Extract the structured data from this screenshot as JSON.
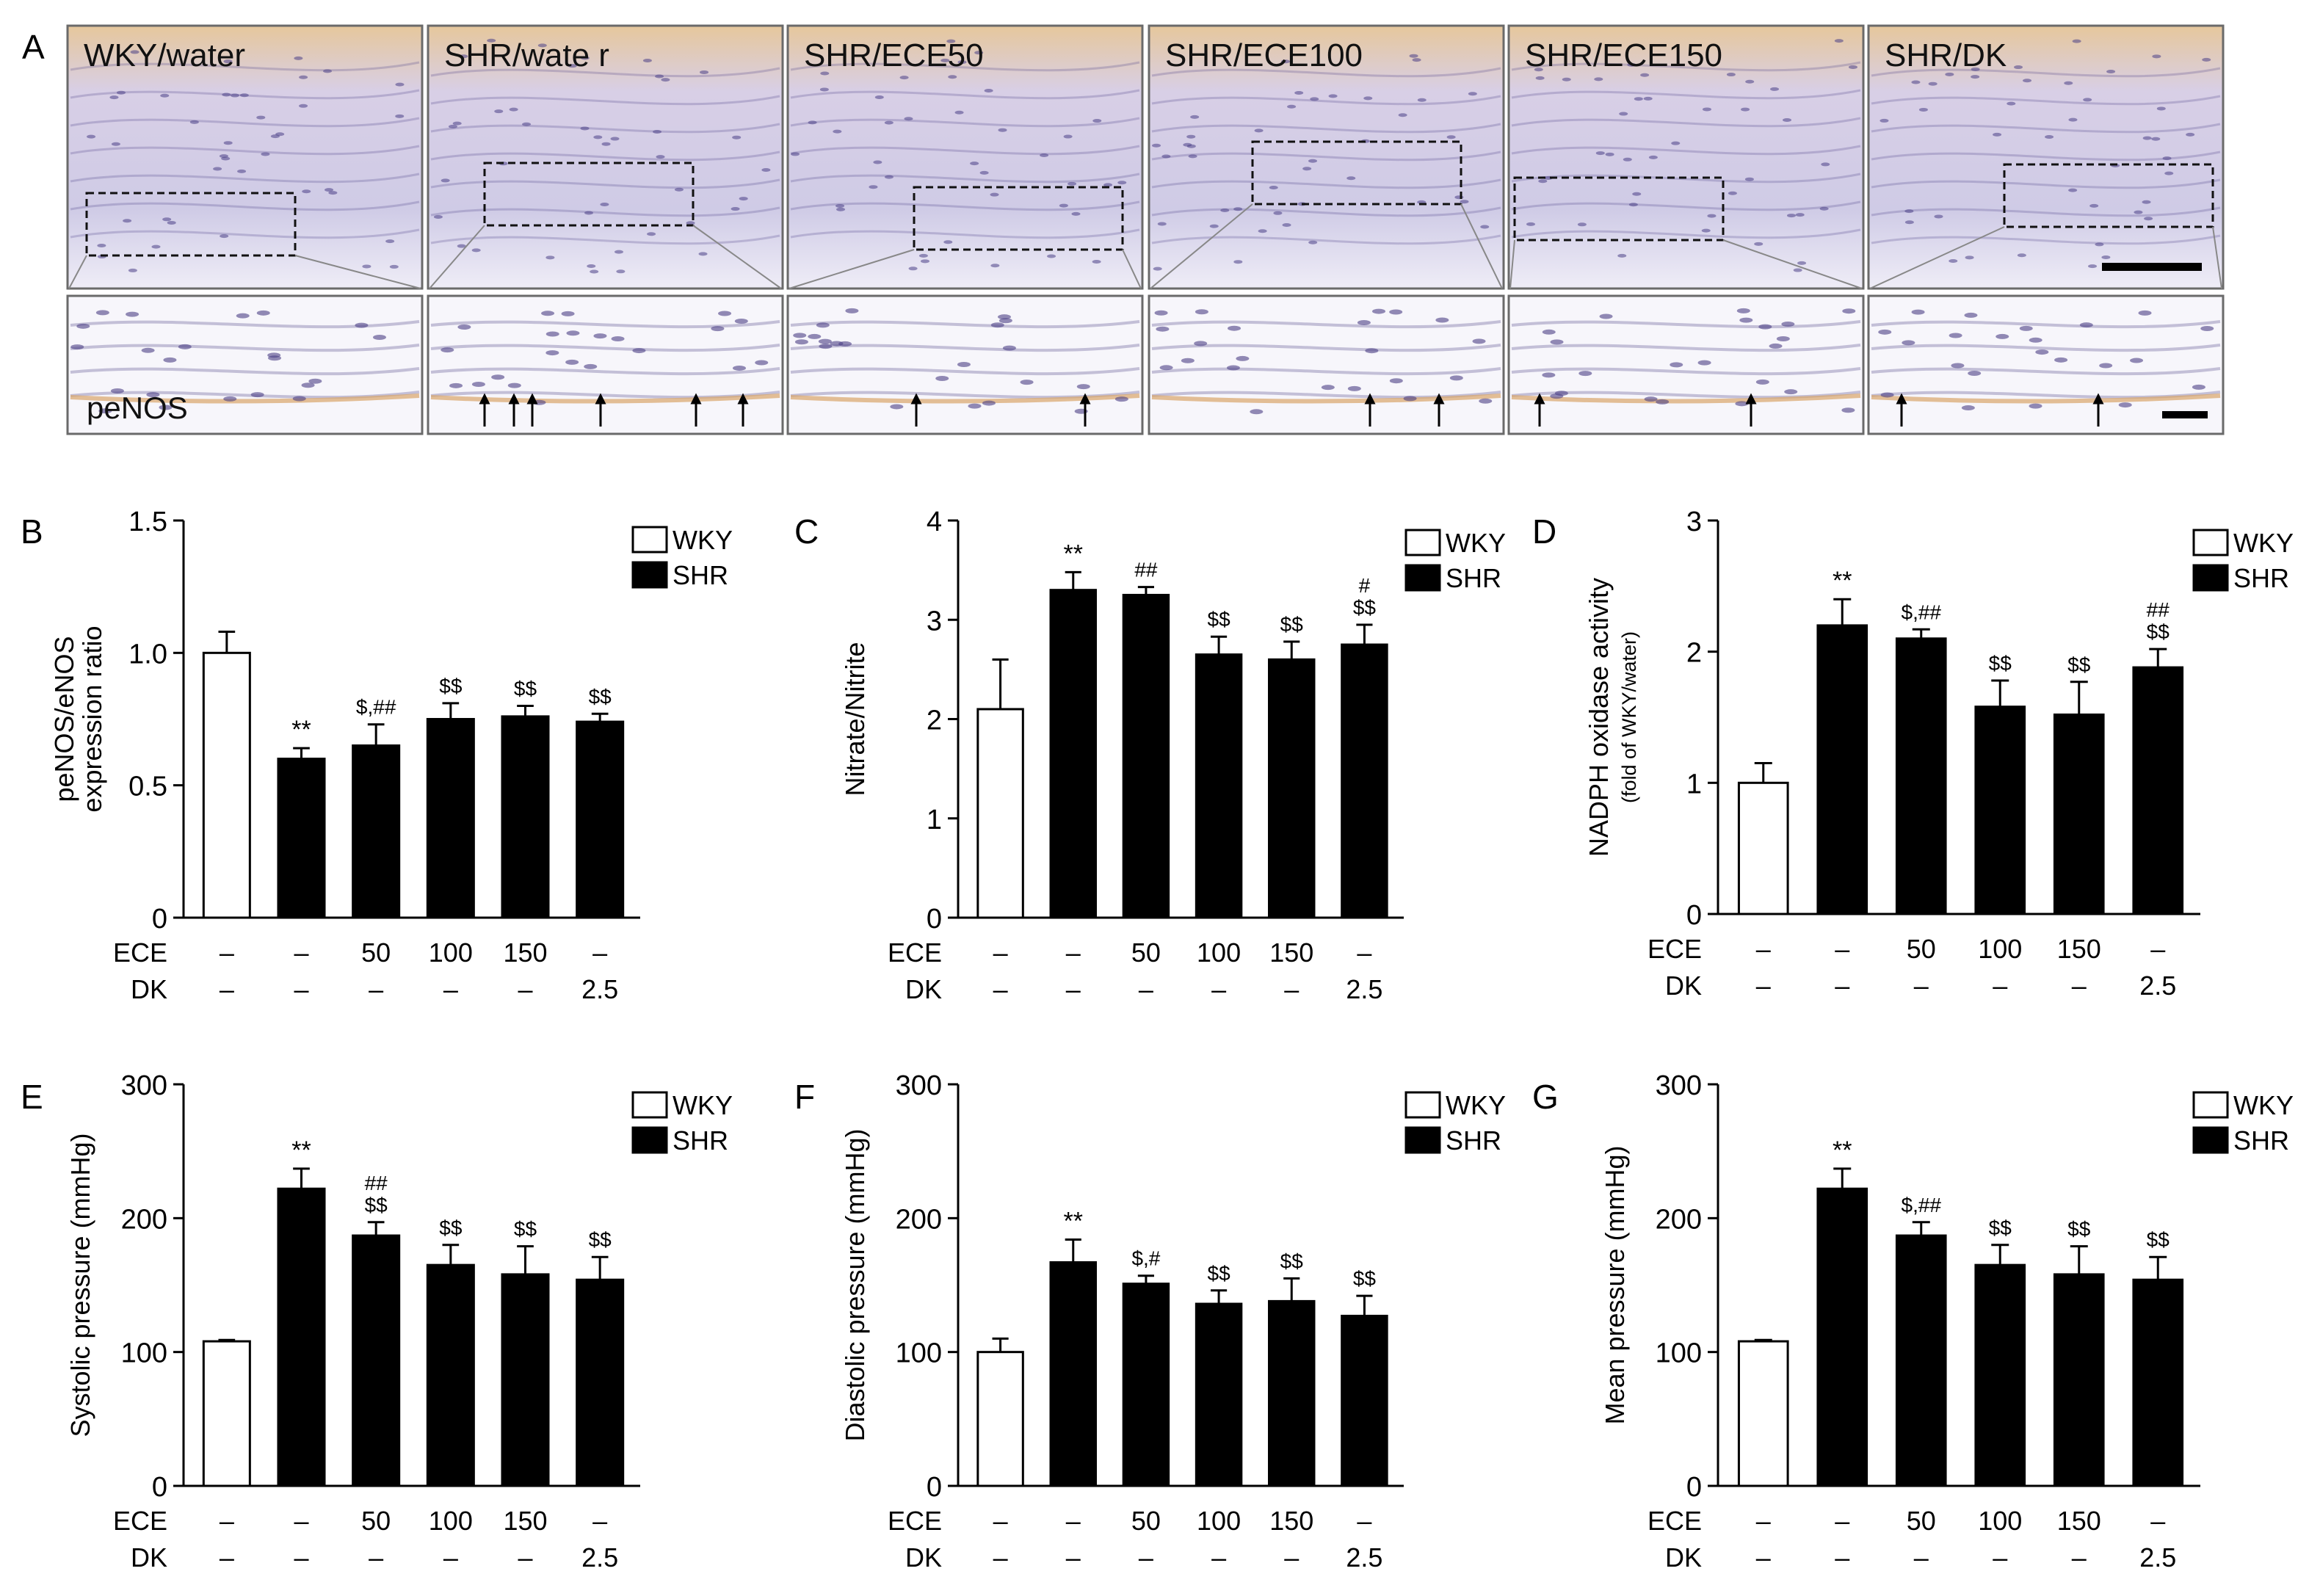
{
  "panel_a": {
    "letter": "A",
    "tiles": [
      "WKY/water",
      "SHR/wate r",
      "SHR/ECE50",
      "SHR/ECE100",
      "SHR/ECE150",
      "SHR/DK"
    ],
    "zoom_label": "peNOS",
    "arrow_counts": [
      0,
      6,
      2,
      2,
      2,
      2
    ],
    "colors": {
      "tissue": "#c9c6e3",
      "stain": "#d9a56a",
      "nucleus": "#4b3f86",
      "background": "#f7f6fb"
    }
  },
  "treatment_rows": {
    "labels": [
      "ECE",
      "DK"
    ],
    "ece": [
      "–",
      "–",
      "50",
      "100",
      "150",
      "–"
    ],
    "dk": [
      "–",
      "–",
      "–",
      "–",
      "–",
      "2.5"
    ]
  },
  "legend": {
    "wky": "WKY",
    "shr": "SHR"
  },
  "colors": {
    "wky_fill": "#ffffff",
    "shr_fill": "#000000",
    "axis": "#000000"
  },
  "chart_data": [
    {
      "panel": "B",
      "type": "bar",
      "ylabel": "peNOS/eNOS",
      "ylabel2": "expression ratio",
      "ylim": [
        0,
        1.5
      ],
      "yticks": [
        "0",
        "0.5",
        "1.0",
        "1.5"
      ],
      "tickvals": [
        0,
        0.5,
        1.0,
        1.5
      ],
      "groups": [
        "WKY",
        "SHR",
        "SHR",
        "SHR",
        "SHR",
        "SHR"
      ],
      "values": [
        1.0,
        0.6,
        0.65,
        0.75,
        0.76,
        0.74
      ],
      "errors": [
        0.08,
        0.04,
        0.08,
        0.06,
        0.04,
        0.03
      ],
      "sig_lines": [
        [],
        [
          "**"
        ],
        [
          "$,##"
        ],
        [
          "$$"
        ],
        [
          "$$"
        ],
        [
          "$$"
        ]
      ]
    },
    {
      "panel": "C",
      "type": "bar",
      "ylabel": "Nitrate/Nitrite",
      "ylim": [
        0,
        4
      ],
      "yticks": [
        "0",
        "1",
        "2",
        "3",
        "4"
      ],
      "tickvals": [
        0,
        1,
        2,
        3,
        4
      ],
      "groups": [
        "WKY",
        "SHR",
        "SHR",
        "SHR",
        "SHR",
        "SHR"
      ],
      "values": [
        2.1,
        3.3,
        3.25,
        2.65,
        2.6,
        2.75
      ],
      "errors": [
        0.5,
        0.18,
        0.08,
        0.18,
        0.18,
        0.2
      ],
      "sig_lines": [
        [],
        [
          "**"
        ],
        [
          "##"
        ],
        [
          "$$"
        ],
        [
          "$$"
        ],
        [
          "#",
          "$$"
        ]
      ]
    },
    {
      "panel": "D",
      "type": "bar",
      "ylabel": "NADPH oxidase activity",
      "ylabel2": "(fold of WKY/water)",
      "ylim": [
        0,
        3
      ],
      "yticks": [
        "0",
        "1",
        "2",
        "3"
      ],
      "tickvals": [
        0,
        1,
        2,
        3
      ],
      "groups": [
        "WKY",
        "SHR",
        "SHR",
        "SHR",
        "SHR",
        "SHR"
      ],
      "values": [
        1.0,
        2.2,
        2.1,
        1.58,
        1.52,
        1.88
      ],
      "errors": [
        0.15,
        0.2,
        0.07,
        0.2,
        0.25,
        0.14
      ],
      "sig_lines": [
        [],
        [
          "**"
        ],
        [
          "$,##"
        ],
        [
          "$$"
        ],
        [
          "$$"
        ],
        [
          "##",
          "$$"
        ]
      ]
    },
    {
      "panel": "E",
      "type": "bar",
      "ylabel": "Systolic pressure (mmHg)",
      "ylim": [
        0,
        300
      ],
      "yticks": [
        "0",
        "100",
        "200",
        "300"
      ],
      "tickvals": [
        0,
        100,
        200,
        300
      ],
      "groups": [
        "WKY",
        "SHR",
        "SHR",
        "SHR",
        "SHR",
        "SHR"
      ],
      "values": [
        108,
        222,
        187,
        165,
        158,
        154
      ],
      "errors": [
        1,
        15,
        10,
        15,
        21,
        17
      ],
      "sig_lines": [
        [],
        [
          "**"
        ],
        [
          "##",
          "$$"
        ],
        [
          "$$"
        ],
        [
          "$$"
        ],
        [
          "$$"
        ]
      ]
    },
    {
      "panel": "F",
      "type": "bar",
      "ylabel": "Diastolic pressure (mmHg)",
      "ylim": [
        0,
        300
      ],
      "yticks": [
        "0",
        "100",
        "200",
        "300"
      ],
      "tickvals": [
        0,
        100,
        200,
        300
      ],
      "groups": [
        "WKY",
        "SHR",
        "SHR",
        "SHR",
        "SHR",
        "SHR"
      ],
      "values": [
        100,
        167,
        151,
        136,
        138,
        127
      ],
      "errors": [
        10,
        17,
        6,
        10,
        17,
        15
      ],
      "sig_lines": [
        [],
        [
          "**"
        ],
        [
          "$,#"
        ],
        [
          "$$"
        ],
        [
          "$$"
        ],
        [
          "$$"
        ]
      ]
    },
    {
      "panel": "G",
      "type": "bar",
      "ylabel": "Mean pressure (mmHg)",
      "ylim": [
        0,
        300
      ],
      "yticks": [
        "0",
        "100",
        "200",
        "300"
      ],
      "tickvals": [
        0,
        100,
        200,
        300
      ],
      "groups": [
        "WKY",
        "SHR",
        "SHR",
        "SHR",
        "SHR",
        "SHR"
      ],
      "values": [
        108,
        222,
        187,
        165,
        158,
        154
      ],
      "errors": [
        1,
        15,
        10,
        15,
        21,
        17
      ],
      "sig_lines": [
        [],
        [
          "**"
        ],
        [
          "$,##"
        ],
        [
          "$$"
        ],
        [
          "$$"
        ],
        [
          "$$"
        ]
      ]
    }
  ]
}
